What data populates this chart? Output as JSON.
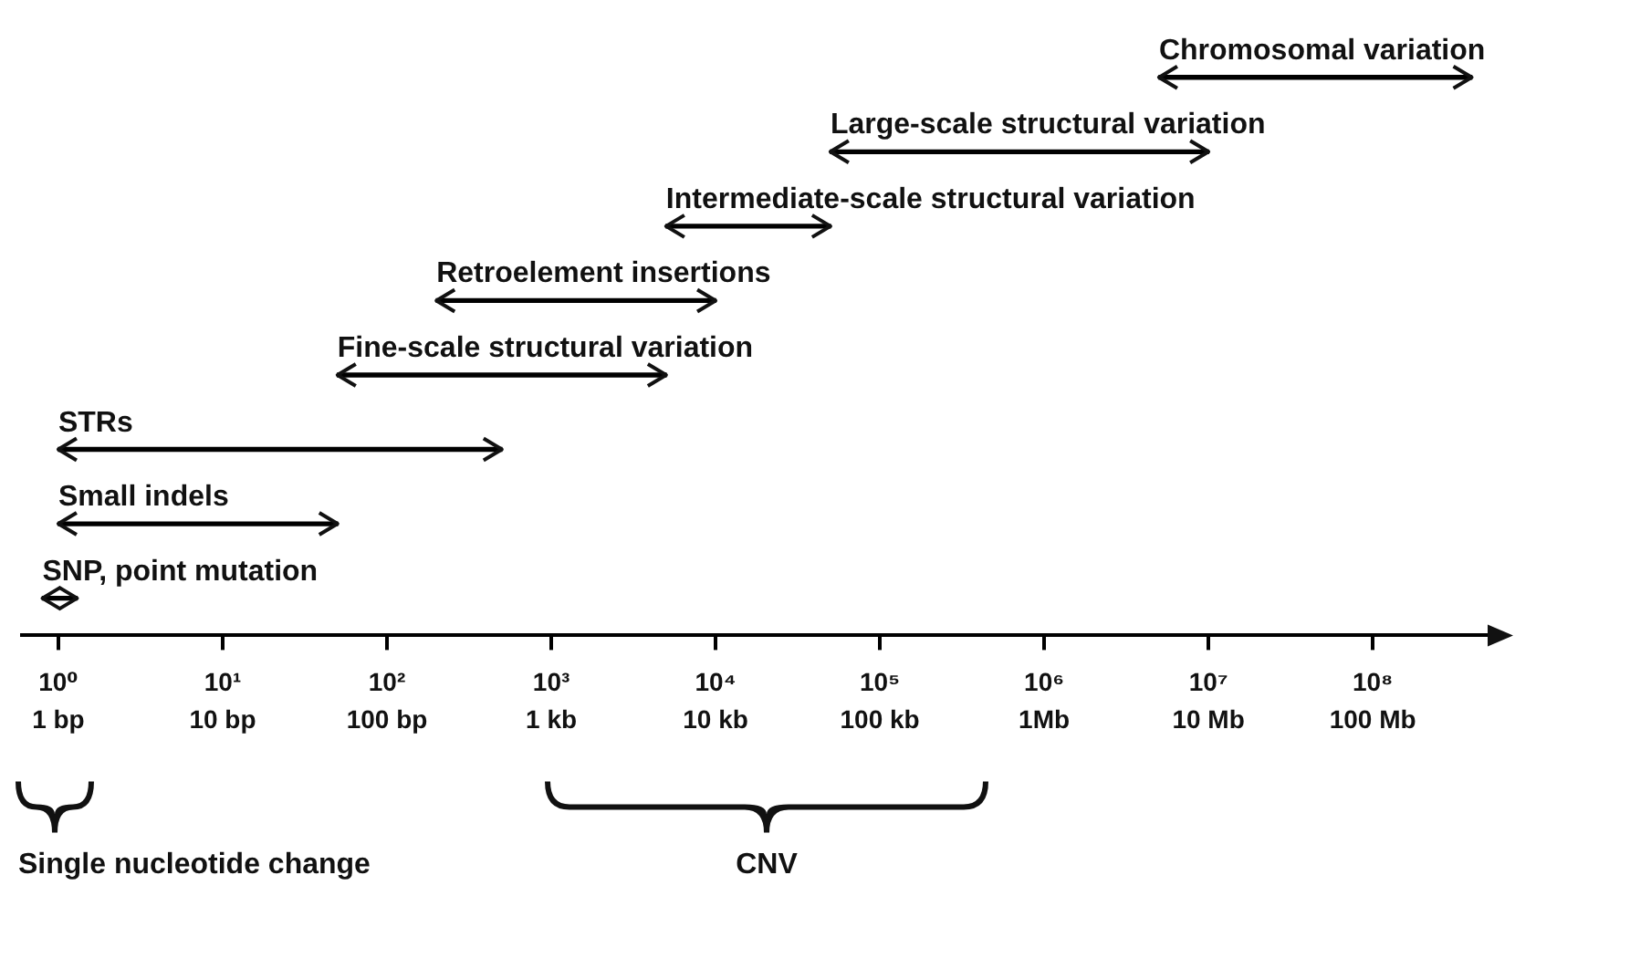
{
  "chart_data": {
    "type": "bar",
    "orientation": "horizontal",
    "log": "x",
    "tick_labels": "x",
    "grid": false,
    "legend": false,
    "categories": [
      "Chromosomal variation",
      "Large-scale structural variation",
      "Intermediate-scale structural variation",
      "Retroelement insertions",
      "Fine-scale structural variation",
      "STRs",
      "Small indels",
      "SNP, point mutation"
    ],
    "base": [
      5000000,
      50000,
      5000,
      200,
      50,
      1,
      1,
      0.8
    ],
    "values": [
      395000000,
      9950000,
      45000,
      9800,
      4950,
      499,
      49,
      0.5
    ],
    "color": "#000000",
    "xlim": [
      0.6,
      500000000
    ],
    "xticks": [
      {
        "value": 1,
        "label": "10⁰"
      },
      {
        "value": 10,
        "label": "10¹"
      },
      {
        "value": 100,
        "label": "10²"
      },
      {
        "value": 1000,
        "label": "10³"
      },
      {
        "value": 10000,
        "label": "10⁴"
      },
      {
        "value": 100000,
        "label": "10⁵"
      },
      {
        "value": 1000000,
        "label": "10⁶"
      },
      {
        "value": 10000000,
        "label": "10⁷"
      },
      {
        "value": 100000000,
        "label": "10⁸"
      }
    ],
    "annotations": [
      "1 bp",
      "10 bp",
      "100 bp",
      "1 kb",
      "10 kb",
      "100 kb",
      "1Mb",
      "10 Mb",
      "100 Mb",
      "Single nucleotide change",
      "CNV"
    ]
  }
}
